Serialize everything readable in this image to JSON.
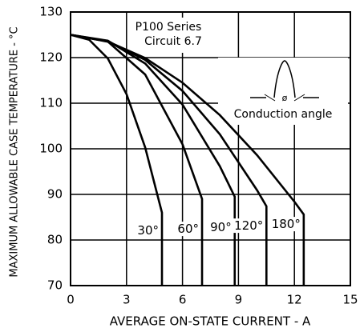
{
  "chart_data": {
    "type": "line",
    "xlabel": "AVERAGE ON-STATE CURRENT - A",
    "ylabel": "MAXIMUM ALLOWABLE CASE TEMPERATURE - °C",
    "xlim": [
      0,
      15
    ],
    "xticks": [
      0,
      3,
      6,
      9,
      12,
      15
    ],
    "ylim": [
      70,
      130
    ],
    "yticks": [
      70,
      80,
      90,
      100,
      110,
      120,
      130
    ],
    "grid": true,
    "annotations": [
      "P100 Series",
      "Circuit 6.7",
      "Conduction angle",
      "ø"
    ],
    "series": [
      {
        "name": "30°",
        "color": "#000000",
        "x": [
          0,
          1,
          2,
          3,
          4,
          4.9,
          4.9
        ],
        "values": [
          125,
          123.9,
          119.8,
          112,
          100.3,
          86,
          70
        ]
      },
      {
        "name": "60°",
        "color": "#000000",
        "x": [
          0,
          2,
          4,
          6,
          7.05,
          7.05
        ],
        "values": [
          125,
          123.5,
          116.3,
          101,
          89,
          70
        ]
      },
      {
        "name": "90°",
        "color": "#000000",
        "x": [
          0,
          2,
          4,
          6,
          8,
          8.8,
          8.8
        ],
        "values": [
          125,
          123.7,
          118.7,
          109.7,
          96.2,
          89.5,
          70
        ]
      },
      {
        "name": "120°",
        "color": "#000000",
        "x": [
          0,
          2,
          4,
          6,
          8,
          10,
          10.5,
          10.5
        ],
        "values": [
          125,
          123.6,
          119.5,
          112.7,
          103.2,
          90.9,
          87.4,
          70
        ]
      },
      {
        "name": "180°",
        "color": "#000000",
        "x": [
          0,
          2,
          4,
          6,
          8,
          10,
          12,
          12.5,
          12.5
        ],
        "values": [
          125,
          123.5,
          119.9,
          114.5,
          107.4,
          98.6,
          88.4,
          85.6,
          70
        ]
      }
    ]
  }
}
